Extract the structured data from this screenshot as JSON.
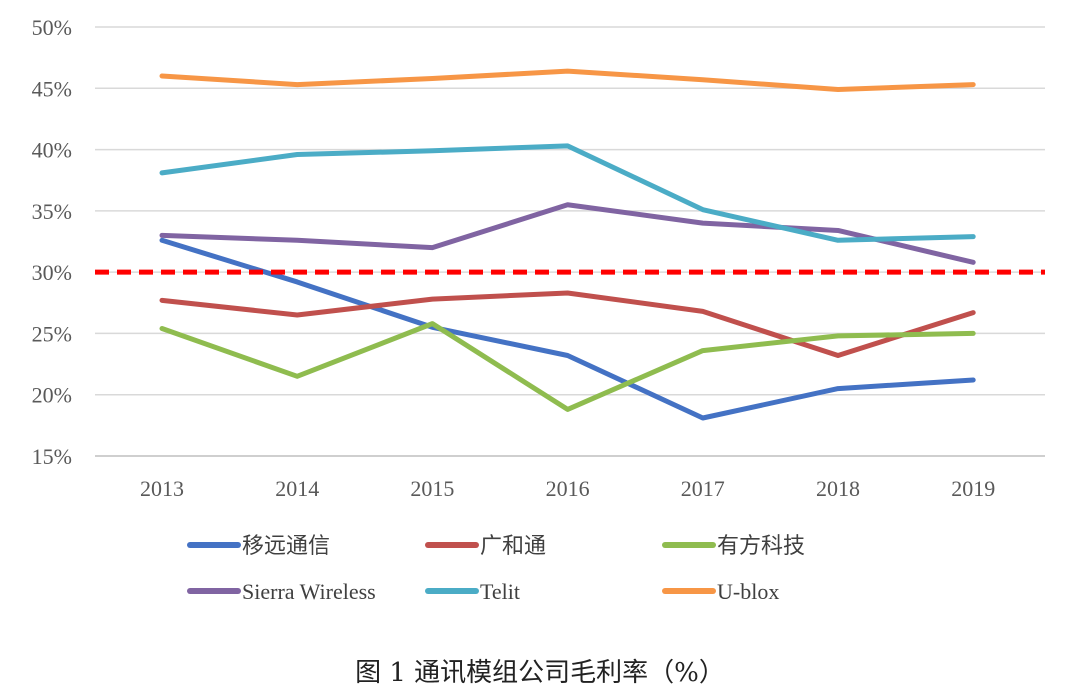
{
  "chart_data": {
    "type": "line",
    "title": "图 1 通讯模组公司毛利率（%）",
    "xlabel": "",
    "ylabel": "",
    "categories": [
      "2013",
      "2014",
      "2015",
      "2016",
      "2017",
      "2018",
      "2019"
    ],
    "ylim": [
      15,
      50
    ],
    "yticks": [
      "15%",
      "20%",
      "25%",
      "30%",
      "35%",
      "40%",
      "45%",
      "50%"
    ],
    "ytick_values": [
      15,
      20,
      25,
      30,
      35,
      40,
      45,
      50
    ],
    "grid": true,
    "legend_placement": "bottom",
    "reference_line": {
      "value": 30,
      "color": "#ff0000",
      "style": "dashed"
    },
    "series": [
      {
        "name": "移远通信",
        "color": "#4472c4",
        "values": [
          32.6,
          29.2,
          25.5,
          23.2,
          18.1,
          20.5,
          21.2
        ]
      },
      {
        "name": "广和通",
        "color": "#c0504d",
        "values": [
          27.7,
          26.5,
          27.8,
          28.3,
          26.8,
          23.2,
          26.7
        ]
      },
      {
        "name": "有方科技",
        "color": "#8fbc4f",
        "values": [
          25.4,
          21.5,
          25.8,
          18.8,
          23.6,
          24.8,
          25.0
        ]
      },
      {
        "name": "Sierra Wireless",
        "color": "#8064a2",
        "values": [
          33.0,
          32.6,
          32.0,
          35.5,
          34.0,
          33.4,
          30.8
        ]
      },
      {
        "name": "Telit",
        "color": "#4bacc6",
        "values": [
          38.1,
          39.6,
          39.9,
          40.3,
          35.1,
          32.6,
          32.9
        ]
      },
      {
        "name": "U-blox",
        "color": "#f79646",
        "values": [
          46.0,
          45.3,
          45.8,
          46.4,
          45.7,
          44.9,
          45.3
        ]
      }
    ]
  }
}
